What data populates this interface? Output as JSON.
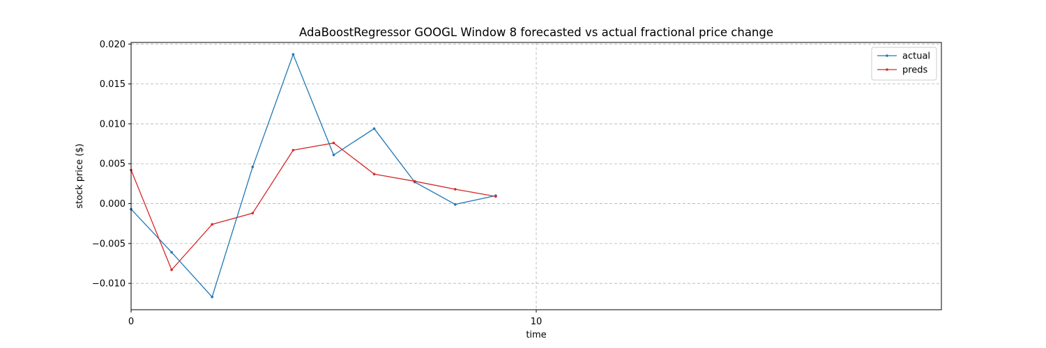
{
  "chart_data": {
    "type": "line",
    "title": "AdaBoostRegressor GOOGL Window 8 forecasted vs actual fractional price change",
    "xlabel": "time",
    "ylabel": "stock price ($)",
    "xlim": [
      0,
      20
    ],
    "ylim": [
      -0.0133,
      0.0202
    ],
    "xticks": [
      0,
      10
    ],
    "yticks": [
      -0.01,
      -0.005,
      0.0,
      0.005,
      0.01,
      0.015,
      0.02
    ],
    "ytick_labels": [
      "−0.010",
      "−0.005",
      "0.000",
      "0.005",
      "0.010",
      "0.015",
      "0.020"
    ],
    "grid": true,
    "legend_position": "top-right",
    "x": [
      0,
      1,
      2,
      3,
      4,
      5,
      6,
      7,
      8,
      9
    ],
    "series": [
      {
        "name": "actual",
        "color": "#1f77b4",
        "values": [
          -0.0007,
          -0.0061,
          -0.0117,
          0.0046,
          0.0187,
          0.0061,
          0.0094,
          0.0027,
          -0.0001,
          0.001
        ]
      },
      {
        "name": "preds",
        "color": "#d62728",
        "values": [
          0.0042,
          -0.0083,
          -0.0026,
          -0.0012,
          0.0067,
          0.0076,
          0.0037,
          0.0028,
          0.0018,
          0.0009
        ]
      }
    ]
  }
}
